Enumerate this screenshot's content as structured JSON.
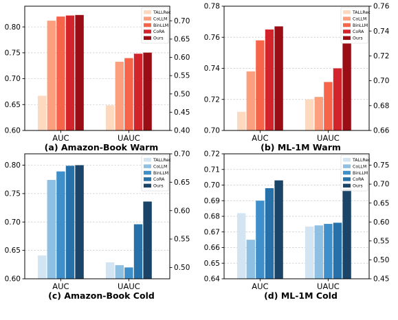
{
  "chart_data": [
    {
      "type": "bar",
      "caption": "(a) Amazon-Book Warm",
      "categories": [
        "AUC",
        "UAUC"
      ],
      "left_ylim": [
        0.6,
        0.84
      ],
      "left_ticks": [
        "0.60",
        "0.65",
        "0.70",
        "0.75",
        "0.80"
      ],
      "right_ylim": [
        0.4,
        0.74
      ],
      "right_ticks": [
        "0.40",
        "0.45",
        "0.50",
        "0.55",
        "0.60",
        "0.65",
        "0.70"
      ],
      "grid": true,
      "legend_position": "top-right",
      "palette": "orange-red",
      "colors": [
        "#fdd9bf",
        "#fc9f7e",
        "#f6644a",
        "#d3242c",
        "#9a0d14"
      ],
      "series": [
        {
          "name": "TALLRec",
          "values": [
            0.667,
            0.469
          ]
        },
        {
          "name": "CoLLM",
          "values": [
            0.812,
            0.588
          ]
        },
        {
          "name": "BinLLM",
          "values": [
            0.82,
            0.598
          ]
        },
        {
          "name": "CoRA",
          "values": [
            0.822,
            0.61
          ]
        },
        {
          "name": "Ours",
          "values": [
            0.823,
            0.613
          ]
        }
      ]
    },
    {
      "type": "bar",
      "caption": "(b) ML-1M Warm",
      "categories": [
        "AUC",
        "UAUC"
      ],
      "left_ylim": [
        0.7,
        0.78
      ],
      "left_ticks": [
        "0.70",
        "0.72",
        "0.74",
        "0.76",
        "0.78"
      ],
      "right_ylim": [
        0.66,
        0.76
      ],
      "right_ticks": [
        "0.66",
        "0.68",
        "0.70",
        "0.72",
        "0.74",
        "0.76"
      ],
      "grid": true,
      "legend_position": "top-right",
      "palette": "orange-red",
      "colors": [
        "#fdd9bf",
        "#fc9f7e",
        "#f6644a",
        "#d3242c",
        "#9a0d14"
      ],
      "series": [
        {
          "name": "TALLRec",
          "values": [
            0.712,
            0.685
          ]
        },
        {
          "name": "CoLLM",
          "values": [
            0.738,
            0.687
          ]
        },
        {
          "name": "BinLLM",
          "values": [
            0.758,
            0.699
          ]
        },
        {
          "name": "CoRA",
          "values": [
            0.765,
            0.71
          ]
        },
        {
          "name": "Ours",
          "values": [
            0.767,
            0.73
          ]
        }
      ]
    },
    {
      "type": "bar",
      "caption": "(c) Amazon-Book Cold",
      "categories": [
        "AUC",
        "UAUC"
      ],
      "left_ylim": [
        0.6,
        0.82
      ],
      "left_ticks": [
        "0.60",
        "0.65",
        "0.70",
        "0.75",
        "0.80"
      ],
      "right_ylim": [
        0.48,
        0.7
      ],
      "right_ticks": [
        "0.50",
        "0.55",
        "0.60",
        "0.65",
        "0.70"
      ],
      "grid": true,
      "legend_position": "top-right",
      "palette": "blue",
      "colors": [
        "#d3e4f3",
        "#8dc0e3",
        "#3f8fcb",
        "#2771aa",
        "#1a4468"
      ],
      "series": [
        {
          "name": "TALLRec",
          "values": [
            0.641,
            0.509
          ]
        },
        {
          "name": "CoLLM",
          "values": [
            0.774,
            0.504
          ]
        },
        {
          "name": "BinLLM",
          "values": [
            0.789,
            0.5
          ]
        },
        {
          "name": "CoRA",
          "values": [
            0.799,
            0.576
          ]
        },
        {
          "name": "Ours",
          "values": [
            0.8,
            0.616
          ]
        }
      ]
    },
    {
      "type": "bar",
      "caption": "(d) ML-1M Cold",
      "categories": [
        "AUC",
        "UAUC"
      ],
      "left_ylim": [
        0.64,
        0.72
      ],
      "left_ticks": [
        "0.64",
        "0.65",
        "0.66",
        "0.67",
        "0.68",
        "0.69",
        "0.70",
        "0.71",
        "0.72"
      ],
      "right_ylim": [
        0.45,
        0.78
      ],
      "right_ticks": [
        "0.45",
        "0.50",
        "0.55",
        "0.60",
        "0.65",
        "0.70",
        "0.75"
      ],
      "grid": true,
      "legend_position": "top-right",
      "palette": "blue",
      "colors": [
        "#d3e4f3",
        "#8dc0e3",
        "#3f8fcb",
        "#2771aa",
        "#1a4468"
      ],
      "series": [
        {
          "name": "TALLRec",
          "values": [
            0.682,
            0.588
          ]
        },
        {
          "name": "CoLLM",
          "values": [
            0.665,
            0.591
          ]
        },
        {
          "name": "BinLLM",
          "values": [
            0.69,
            0.595
          ]
        },
        {
          "name": "CoRA",
          "values": [
            0.698,
            0.598
          ]
        },
        {
          "name": "Ours",
          "values": [
            0.703,
            0.686
          ]
        }
      ]
    }
  ]
}
